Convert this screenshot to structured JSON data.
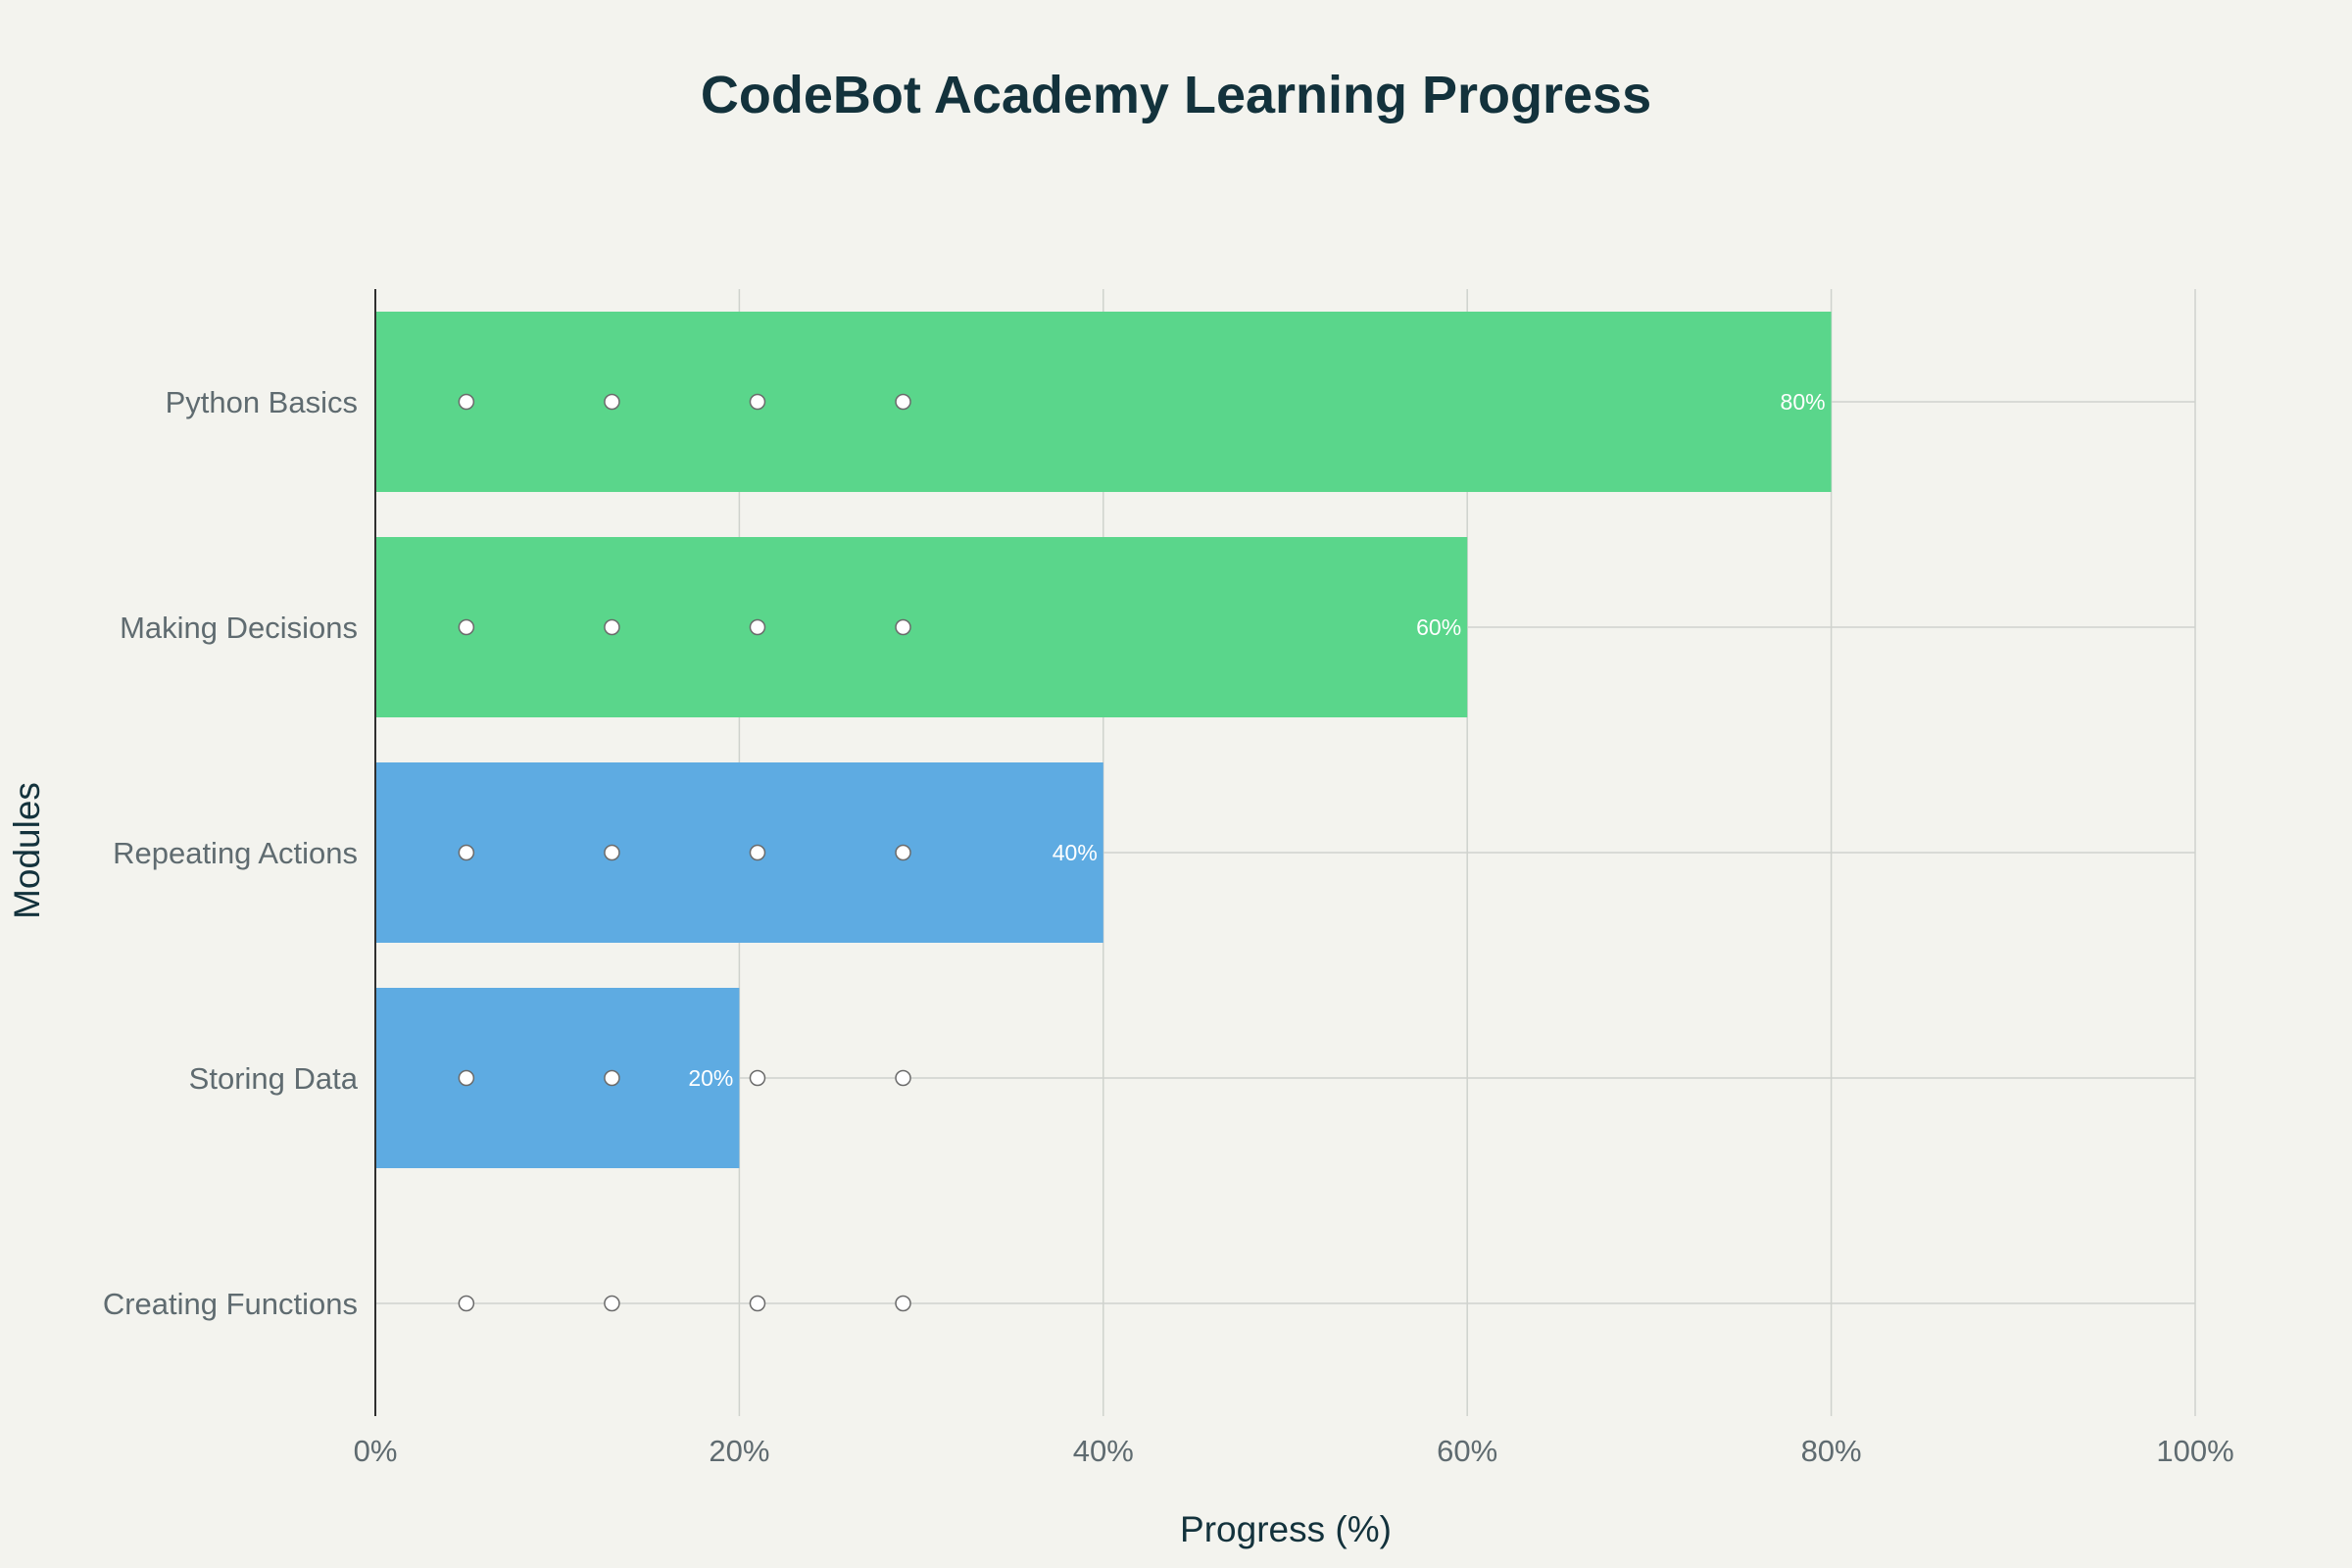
{
  "chart_data": {
    "type": "bar",
    "orientation": "horizontal",
    "title": "CodeBot Academy Learning Progress",
    "xlabel": "Progress (%)",
    "ylabel": "Modules",
    "xlim": [
      0,
      100
    ],
    "x_ticks": [
      "0%",
      "20%",
      "40%",
      "60%",
      "80%",
      "100%"
    ],
    "x_tick_values": [
      0,
      20,
      40,
      60,
      80,
      100
    ],
    "grid": true,
    "categories": [
      "Python Basics",
      "Making Decisions",
      "Repeating Actions",
      "Storing Data",
      "Creating Functions"
    ],
    "values": [
      80,
      60,
      40,
      20,
      0
    ],
    "data_labels": [
      "80%",
      "60%",
      "40%",
      "20%",
      ""
    ],
    "bar_colors": [
      "#5ad68b",
      "#5ad68b",
      "#5eabe2",
      "#5eabe2",
      "#5eabe2"
    ],
    "markers": {
      "x": [
        5,
        13,
        21,
        29
      ],
      "fill": "#ffffff",
      "stroke": "#6b6b6b"
    },
    "colors": {
      "background": "#f3f3ee",
      "grid": "#cfd2cd",
      "axis_line": "#2f2f2f",
      "title": "#13323c",
      "tick_text": "#5f6b70",
      "data_label_text": "#ffffff"
    }
  }
}
